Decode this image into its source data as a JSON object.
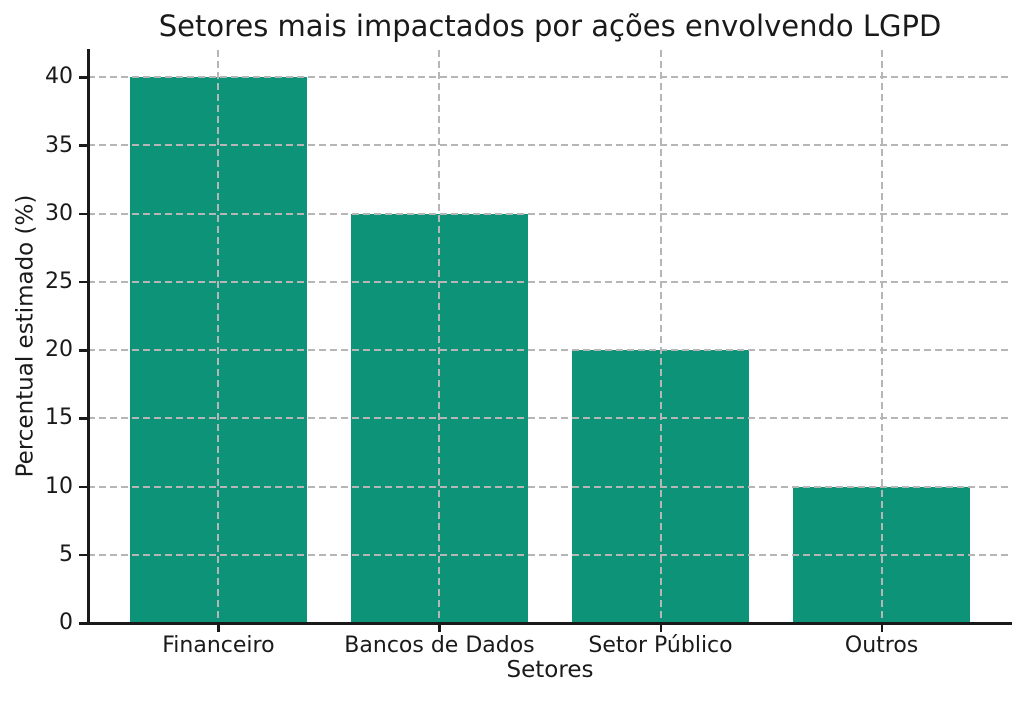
{
  "chart_data": {
    "type": "bar",
    "title": "Setores mais impactados por ações envolvendo LGPD",
    "xlabel": "Setores",
    "ylabel": "Percentual estimado (%)",
    "categories": [
      "Financeiro",
      "Bancos de Dados",
      "Setor Público",
      "Outros"
    ],
    "values": [
      40,
      30,
      20,
      10
    ],
    "yticks": [
      0,
      5,
      10,
      15,
      20,
      25,
      30,
      35,
      40
    ],
    "ylim": [
      0,
      42
    ],
    "grid": true,
    "grid_style": "dashed",
    "legend": "none",
    "colors": {
      "bar": "#0d9478",
      "grid": "#b6b6b6",
      "axis": "#1a1a1a",
      "text": "#1a1a1a",
      "background": "#ffffff"
    }
  }
}
